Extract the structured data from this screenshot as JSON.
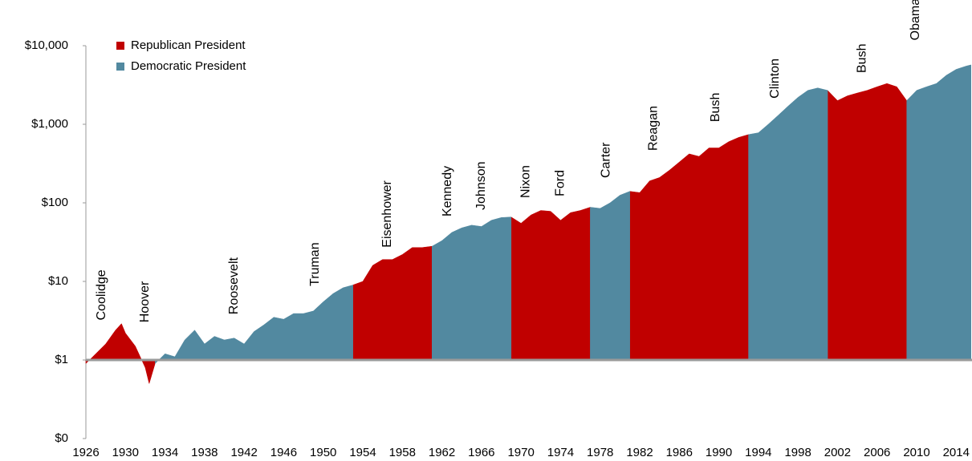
{
  "chart_data": {
    "type": "area",
    "log_scale": true,
    "legend": "upper left",
    "x": [
      1926,
      1927,
      1928,
      1929,
      1929.6,
      1930,
      1931,
      1932,
      1932.4,
      1933,
      1934,
      1935,
      1936,
      1937,
      1938,
      1939,
      1940,
      1941,
      1942,
      1943,
      1944,
      1945,
      1946,
      1947,
      1948,
      1949,
      1950,
      1951,
      1952,
      1953,
      1954,
      1955,
      1956,
      1957,
      1958,
      1959,
      1960,
      1961,
      1962,
      1963,
      1964,
      1965,
      1966,
      1967,
      1968,
      1969,
      1970,
      1971,
      1972,
      1973,
      1974,
      1975,
      1976,
      1977,
      1978,
      1979,
      1980,
      1981,
      1982,
      1983,
      1984,
      1985,
      1986,
      1987,
      1988,
      1989,
      1990,
      1991,
      1992,
      1993,
      1994,
      1995,
      1996,
      1997,
      1998,
      1999,
      2000,
      2001,
      2002,
      2003,
      2004,
      2005,
      2006,
      2007,
      2008,
      2009,
      2010,
      2011,
      2012,
      2013,
      2014,
      2015,
      2015.5
    ],
    "series": [
      {
        "name": "Republican President",
        "color": "#c00000",
        "values": [
          0.9,
          1.2,
          1.6,
          2.4,
          2.9,
          2.2,
          1.5,
          0.8,
          0.5,
          0.9,
          null,
          null,
          null,
          null,
          null,
          null,
          null,
          null,
          null,
          null,
          null,
          null,
          null,
          null,
          null,
          null,
          null,
          null,
          null,
          9,
          10,
          16,
          19,
          19,
          22,
          27,
          27,
          28,
          null,
          null,
          null,
          null,
          null,
          null,
          null,
          66,
          55,
          70,
          80,
          78,
          60,
          75,
          80,
          88,
          null,
          null,
          null,
          140,
          135,
          190,
          210,
          260,
          330,
          420,
          390,
          500,
          500,
          600,
          680,
          740,
          null,
          null,
          null,
          null,
          null,
          null,
          null,
          2700,
          2000,
          2300,
          2500,
          2700,
          3000,
          3300,
          3000,
          2000,
          null,
          null,
          null,
          null,
          null,
          null,
          null
        ]
      },
      {
        "name": "Democratic President",
        "color": "#5289a0",
        "values": [
          null,
          null,
          null,
          null,
          null,
          null,
          null,
          null,
          null,
          0.9,
          1.2,
          1.1,
          1.8,
          2.4,
          1.6,
          2.0,
          1.8,
          1.9,
          1.6,
          2.3,
          2.8,
          3.5,
          3.3,
          3.9,
          3.9,
          4.2,
          5.5,
          7.0,
          8.3,
          9,
          null,
          null,
          null,
          null,
          null,
          null,
          null,
          28,
          33,
          42,
          48,
          52,
          50,
          60,
          65,
          66,
          null,
          null,
          null,
          null,
          null,
          null,
          null,
          88,
          85,
          100,
          125,
          140,
          null,
          null,
          null,
          null,
          null,
          null,
          null,
          null,
          null,
          null,
          null,
          740,
          780,
          1000,
          1300,
          1700,
          2200,
          2700,
          2900,
          2700,
          null,
          null,
          null,
          null,
          null,
          null,
          null,
          2000,
          2700,
          3000,
          3300,
          4200,
          5000,
          5500,
          5700
        ]
      }
    ],
    "baseline": 1,
    "xlim": [
      1926,
      2015.6
    ],
    "xticks": [
      1926,
      1930,
      1934,
      1938,
      1942,
      1946,
      1950,
      1954,
      1958,
      1962,
      1966,
      1970,
      1974,
      1978,
      1982,
      1986,
      1990,
      1994,
      1998,
      2002,
      2006,
      2010,
      2014
    ],
    "ylim": [
      0.1,
      10000
    ],
    "yticks": [
      {
        "value": 0.1,
        "label": "$0"
      },
      {
        "value": 1,
        "label": "$1"
      },
      {
        "value": 10,
        "label": "$10"
      },
      {
        "value": 100,
        "label": "$100"
      },
      {
        "value": 1000,
        "label": "$1,000"
      },
      {
        "value": 10000,
        "label": "$10,000"
      }
    ],
    "annotations": [
      {
        "text": "Coolidge",
        "x": 1927.6,
        "y": 3.2
      },
      {
        "text": "Hoover",
        "x": 1932,
        "y": 3.0
      },
      {
        "text": "Roosevelt",
        "x": 1941,
        "y": 3.8
      },
      {
        "text": "Truman",
        "x": 1949.2,
        "y": 8.7
      },
      {
        "text": "Eisenhower",
        "x": 1956.5,
        "y": 27
      },
      {
        "text": "Kennedy",
        "x": 1962.6,
        "y": 67
      },
      {
        "text": "Johnson",
        "x": 1966,
        "y": 81
      },
      {
        "text": "Nixon",
        "x": 1970.5,
        "y": 115
      },
      {
        "text": "Ford",
        "x": 1974,
        "y": 121
      },
      {
        "text": "Carter",
        "x": 1978.6,
        "y": 207
      },
      {
        "text": "Reagan",
        "x": 1983.4,
        "y": 460
      },
      {
        "text": "Bush",
        "x": 1989.7,
        "y": 1070
      },
      {
        "text": "Clinton",
        "x": 1995.7,
        "y": 2130
      },
      {
        "text": "Bush",
        "x": 2004.5,
        "y": 4500
      },
      {
        "text": "Obama",
        "x": 2009.9,
        "y": 11700
      }
    ]
  }
}
